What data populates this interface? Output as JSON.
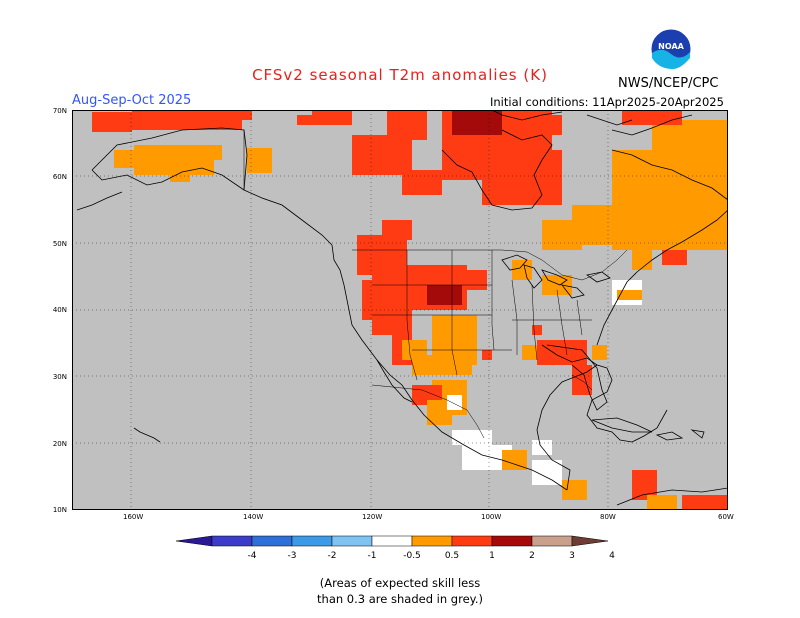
{
  "title": "CFSv2 seasonal T2m anomalies (K)",
  "period": "Aug-Sep-Oct 2025",
  "initial_conditions": "Initial conditions: 11Apr2025-20Apr2025",
  "organization": "NWS/NCEP/CPC",
  "logo_text": "NOAA",
  "latitude_labels": [
    "70N",
    "60N",
    "50N",
    "40N",
    "30N",
    "20N",
    "10N"
  ],
  "longitude_labels": [
    "160W",
    "140W",
    "120W",
    "100W",
    "80W",
    "60W"
  ],
  "colorbar": {
    "tick_labels": [
      "-4",
      "-3",
      "-2",
      "-1",
      "-0.5",
      "0.5",
      "1",
      "2",
      "3",
      "4"
    ],
    "colors": [
      "#2a1896",
      "#3c3cc8",
      "#2f6fd8",
      "#3d9ae6",
      "#7ec3f2",
      "#ffffff",
      "#ff9b00",
      "#ff3b14",
      "#a50a0a",
      "#c8a08c",
      "#6e3c32"
    ]
  },
  "colors": {
    "grey_mask": "#c0c0c0",
    "ocean_white": "#ffffff",
    "anom_05_1": "#ff9b00",
    "anom_1_2": "#ff3b14",
    "anom_2_3": "#a50a0a"
  },
  "note_lines": [
    "(Areas of expected skill less",
    "than 0.3 are shaded in grey.)"
  ]
}
